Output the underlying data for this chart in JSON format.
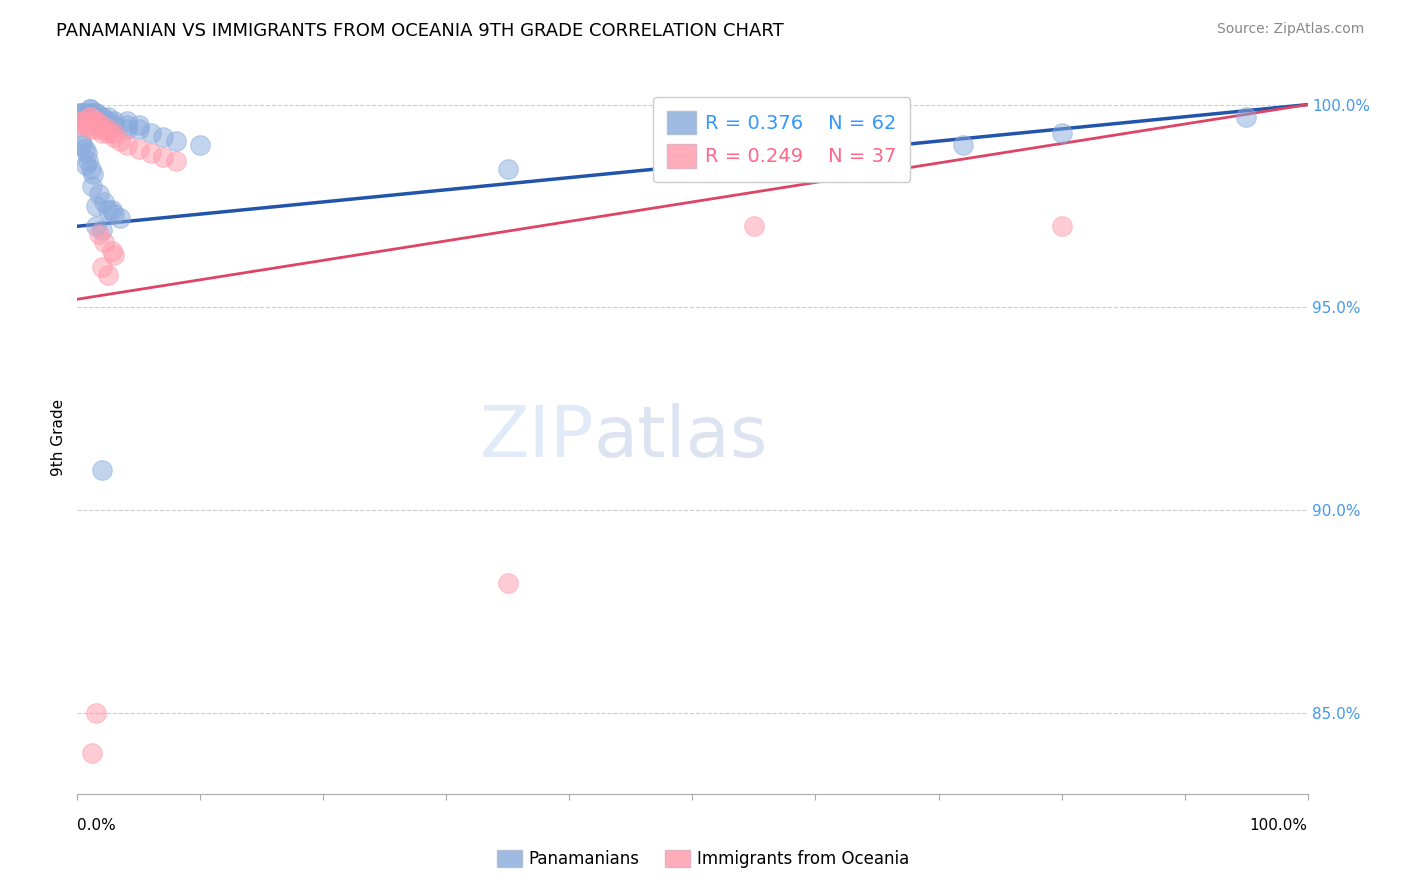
{
  "title": "PANAMANIAN VS IMMIGRANTS FROM OCEANIA 9TH GRADE CORRELATION CHART",
  "source": "Source: ZipAtlas.com",
  "ylabel": "9th Grade",
  "legend_blue_label": "Panamanians",
  "legend_pink_label": "Immigrants from Oceania",
  "blue_R": 0.376,
  "blue_N": 62,
  "pink_R": 0.249,
  "pink_N": 37,
  "blue_color": "#88AADD",
  "pink_color": "#FF99AA",
  "blue_line_color": "#2255AA",
  "pink_line_color": "#DD4466",
  "right_yticks": [
    85.0,
    90.0,
    95.0,
    100.0
  ],
  "ylim_min": 0.83,
  "ylim_max": 1.006,
  "xlim_min": 0.0,
  "xlim_max": 1.0,
  "blue_scatter_x": [
    0.001,
    0.002,
    0.003,
    0.004,
    0.005,
    0.01,
    0.01,
    0.01,
    0.01,
    0.01,
    0.01,
    0.01,
    0.01,
    0.015,
    0.015,
    0.015,
    0.015,
    0.015,
    0.015,
    0.02,
    0.02,
    0.02,
    0.02,
    0.02,
    0.025,
    0.025,
    0.025,
    0.03,
    0.03,
    0.04,
    0.04,
    0.04,
    0.05,
    0.05,
    0.06,
    0.07,
    0.08,
    0.1,
    0.02,
    0.35,
    0.55,
    0.72,
    0.8,
    0.95,
    0.015,
    0.025,
    0.03,
    0.035,
    0.012,
    0.018,
    0.022,
    0.028,
    0.015,
    0.02,
    0.008,
    0.006,
    0.004,
    0.003,
    0.007,
    0.009,
    0.011,
    0.013
  ],
  "blue_scatter_y": [
    0.998,
    0.997,
    0.998,
    0.997,
    0.998,
    0.999,
    0.998,
    0.997,
    0.996,
    0.998,
    0.997,
    0.996,
    0.999,
    0.998,
    0.997,
    0.996,
    0.998,
    0.997,
    0.996,
    0.997,
    0.996,
    0.995,
    0.997,
    0.996,
    0.997,
    0.996,
    0.995,
    0.996,
    0.995,
    0.996,
    0.995,
    0.994,
    0.995,
    0.994,
    0.993,
    0.992,
    0.991,
    0.99,
    0.91,
    0.984,
    0.987,
    0.99,
    0.993,
    0.997,
    0.975,
    0.974,
    0.973,
    0.972,
    0.98,
    0.978,
    0.976,
    0.974,
    0.97,
    0.969,
    0.988,
    0.989,
    0.99,
    0.991,
    0.985,
    0.986,
    0.984,
    0.983
  ],
  "pink_scatter_x": [
    0.002,
    0.003,
    0.004,
    0.005,
    0.01,
    0.01,
    0.01,
    0.01,
    0.01,
    0.015,
    0.015,
    0.015,
    0.015,
    0.02,
    0.02,
    0.02,
    0.025,
    0.025,
    0.03,
    0.03,
    0.035,
    0.04,
    0.05,
    0.06,
    0.07,
    0.08,
    0.02,
    0.025,
    0.35,
    0.55,
    0.8,
    0.015,
    0.012,
    0.018,
    0.022,
    0.028,
    0.03
  ],
  "pink_scatter_y": [
    0.996,
    0.995,
    0.996,
    0.995,
    0.997,
    0.996,
    0.995,
    0.994,
    0.997,
    0.996,
    0.995,
    0.994,
    0.996,
    0.995,
    0.994,
    0.993,
    0.994,
    0.993,
    0.993,
    0.992,
    0.991,
    0.99,
    0.989,
    0.988,
    0.987,
    0.986,
    0.96,
    0.958,
    0.882,
    0.97,
    0.97,
    0.85,
    0.84,
    0.968,
    0.966,
    0.964,
    0.963
  ]
}
